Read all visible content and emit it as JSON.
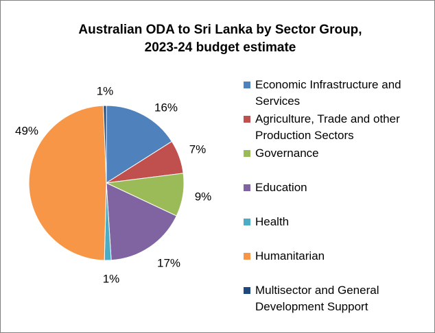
{
  "chart_data": {
    "type": "pie",
    "title_lines": [
      "Australian ODA to Sri Lanka by Sector Group,",
      "2023-24 budget estimate"
    ],
    "slices": [
      {
        "label": "Economic Infrastructure and Services",
        "value": 16,
        "display": "16%",
        "color": "#4F81BD"
      },
      {
        "label": "Agriculture, Trade and other Production Sectors",
        "value": 7,
        "display": "7%",
        "color": "#C0504D"
      },
      {
        "label": "Governance",
        "value": 9,
        "display": "9%",
        "color": "#9BBB59"
      },
      {
        "label": "Education",
        "value": 17,
        "display": "17%",
        "color": "#8064A2"
      },
      {
        "label": "Health",
        "value": 1.4,
        "display": "1%",
        "color": "#4BACC6"
      },
      {
        "label": "Humanitarian",
        "value": 49,
        "display": "49%",
        "color": "#F79646"
      },
      {
        "label": "Multisector and General Development Support",
        "value": 0.6,
        "display": "1%",
        "color": "#1F497D"
      }
    ],
    "legend_position": "right",
    "start_angle": "12 o'clock",
    "direction": "clockwise"
  }
}
